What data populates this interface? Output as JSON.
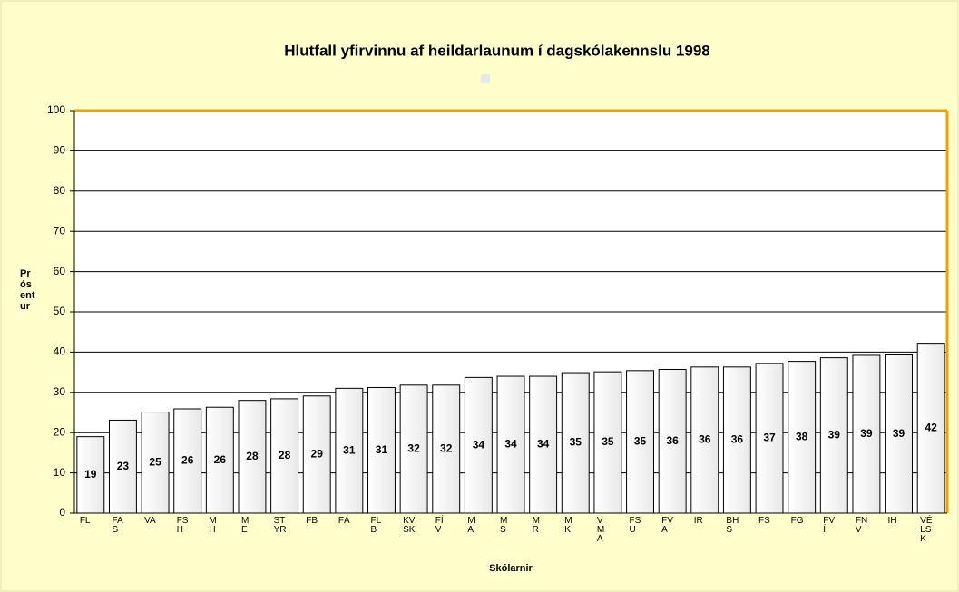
{
  "chart_data": {
    "type": "bar",
    "title": "Hlutfall yfirvinnu af heildarlaunum í dagskólakennslu 1998",
    "xlabel": "Skólarnir",
    "ylabel": "Prósentur",
    "categories": [
      "FL",
      "FAS",
      "VA",
      "FSH",
      "MH",
      "ME",
      "STYR",
      "FB",
      "FÁ",
      "FLB",
      "KVSK",
      "FÍV",
      "MA",
      "MS",
      "MR",
      "MK",
      "VMA",
      "FSU",
      "FVA",
      "IR",
      "BHS",
      "FS",
      "FG",
      "FVÍ",
      "FNV",
      "IH",
      "VÉLSK"
    ],
    "values": [
      19,
      23.1,
      25.1,
      25.9,
      26.3,
      28,
      28.4,
      29.1,
      31,
      31.2,
      31.8,
      31.8,
      33.7,
      34,
      34,
      34.9,
      35.1,
      35.4,
      35.7,
      36.3,
      36.3,
      37.2,
      37.7,
      38.6,
      39.2,
      39.3,
      42.2
    ],
    "value_labels": [
      "19",
      "23",
      "25",
      "26",
      "26",
      "28",
      "28",
      "29",
      "31",
      "31",
      "32",
      "32",
      "34",
      "34",
      "34",
      "35",
      "35",
      "35",
      "36",
      "36",
      "36",
      "37",
      "38",
      "39",
      "39",
      "39",
      "42"
    ],
    "color": "#f4f4f4",
    "ylim": [
      0,
      100
    ],
    "yticks": [
      0,
      10,
      20,
      30,
      40,
      50,
      60,
      70,
      80,
      90,
      100
    ],
    "grid": true
  }
}
